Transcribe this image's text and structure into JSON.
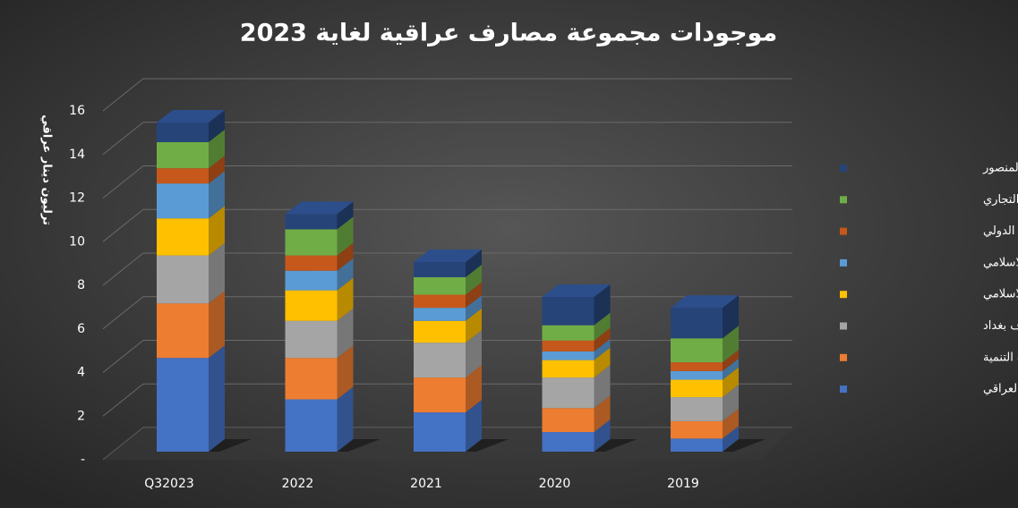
{
  "chart_data": {
    "type": "bar3d-stacked",
    "title": "موجودات مجموعة مصارف عراقية لغاية 2023",
    "y_label": "ترليون دينار عراقي",
    "categories": [
      "Q32023",
      "2022",
      "2021",
      "2020",
      "2019"
    ],
    "series": [
      {
        "name": "المصرف الاهلي العراقي",
        "color": "#4472c4",
        "values": [
          4.3,
          2.4,
          1.8,
          0.9,
          0.6
        ]
      },
      {
        "name": "مصرف التنمية",
        "color": "#ed7d31",
        "values": [
          2.5,
          1.9,
          1.6,
          1.1,
          0.8
        ]
      },
      {
        "name": "مصرف بغداد",
        "color": "#a5a5a5",
        "values": [
          2.2,
          1.7,
          1.6,
          1.4,
          1.1
        ]
      },
      {
        "name": "المصرف العراقي الاسلامي",
        "color": "#ffc000",
        "values": [
          1.7,
          1.4,
          1.0,
          0.8,
          0.8
        ]
      },
      {
        "name": "مصرف الجنوب الاسلامي",
        "color": "#5b9bd5",
        "values": [
          1.6,
          0.9,
          0.6,
          0.4,
          0.4
        ]
      },
      {
        "name": "مصرف اشور الدولي",
        "color": "#c5581a",
        "values": [
          0.7,
          0.7,
          0.6,
          0.5,
          0.4
        ]
      },
      {
        "name": "مصرف الاقليم التجاري",
        "color": "#70ad47",
        "values": [
          1.2,
          1.2,
          0.8,
          0.7,
          1.1
        ]
      },
      {
        "name": "مصرف المنصور",
        "color": "#264478",
        "values": [
          0.9,
          0.7,
          0.7,
          1.3,
          1.4
        ]
      }
    ],
    "ylim": [
      0,
      16
    ],
    "yticks": [
      {
        "value": 0,
        "label": "-"
      },
      2,
      4,
      6,
      8,
      10,
      12,
      14,
      16
    ],
    "grid": true,
    "legend": "right"
  }
}
